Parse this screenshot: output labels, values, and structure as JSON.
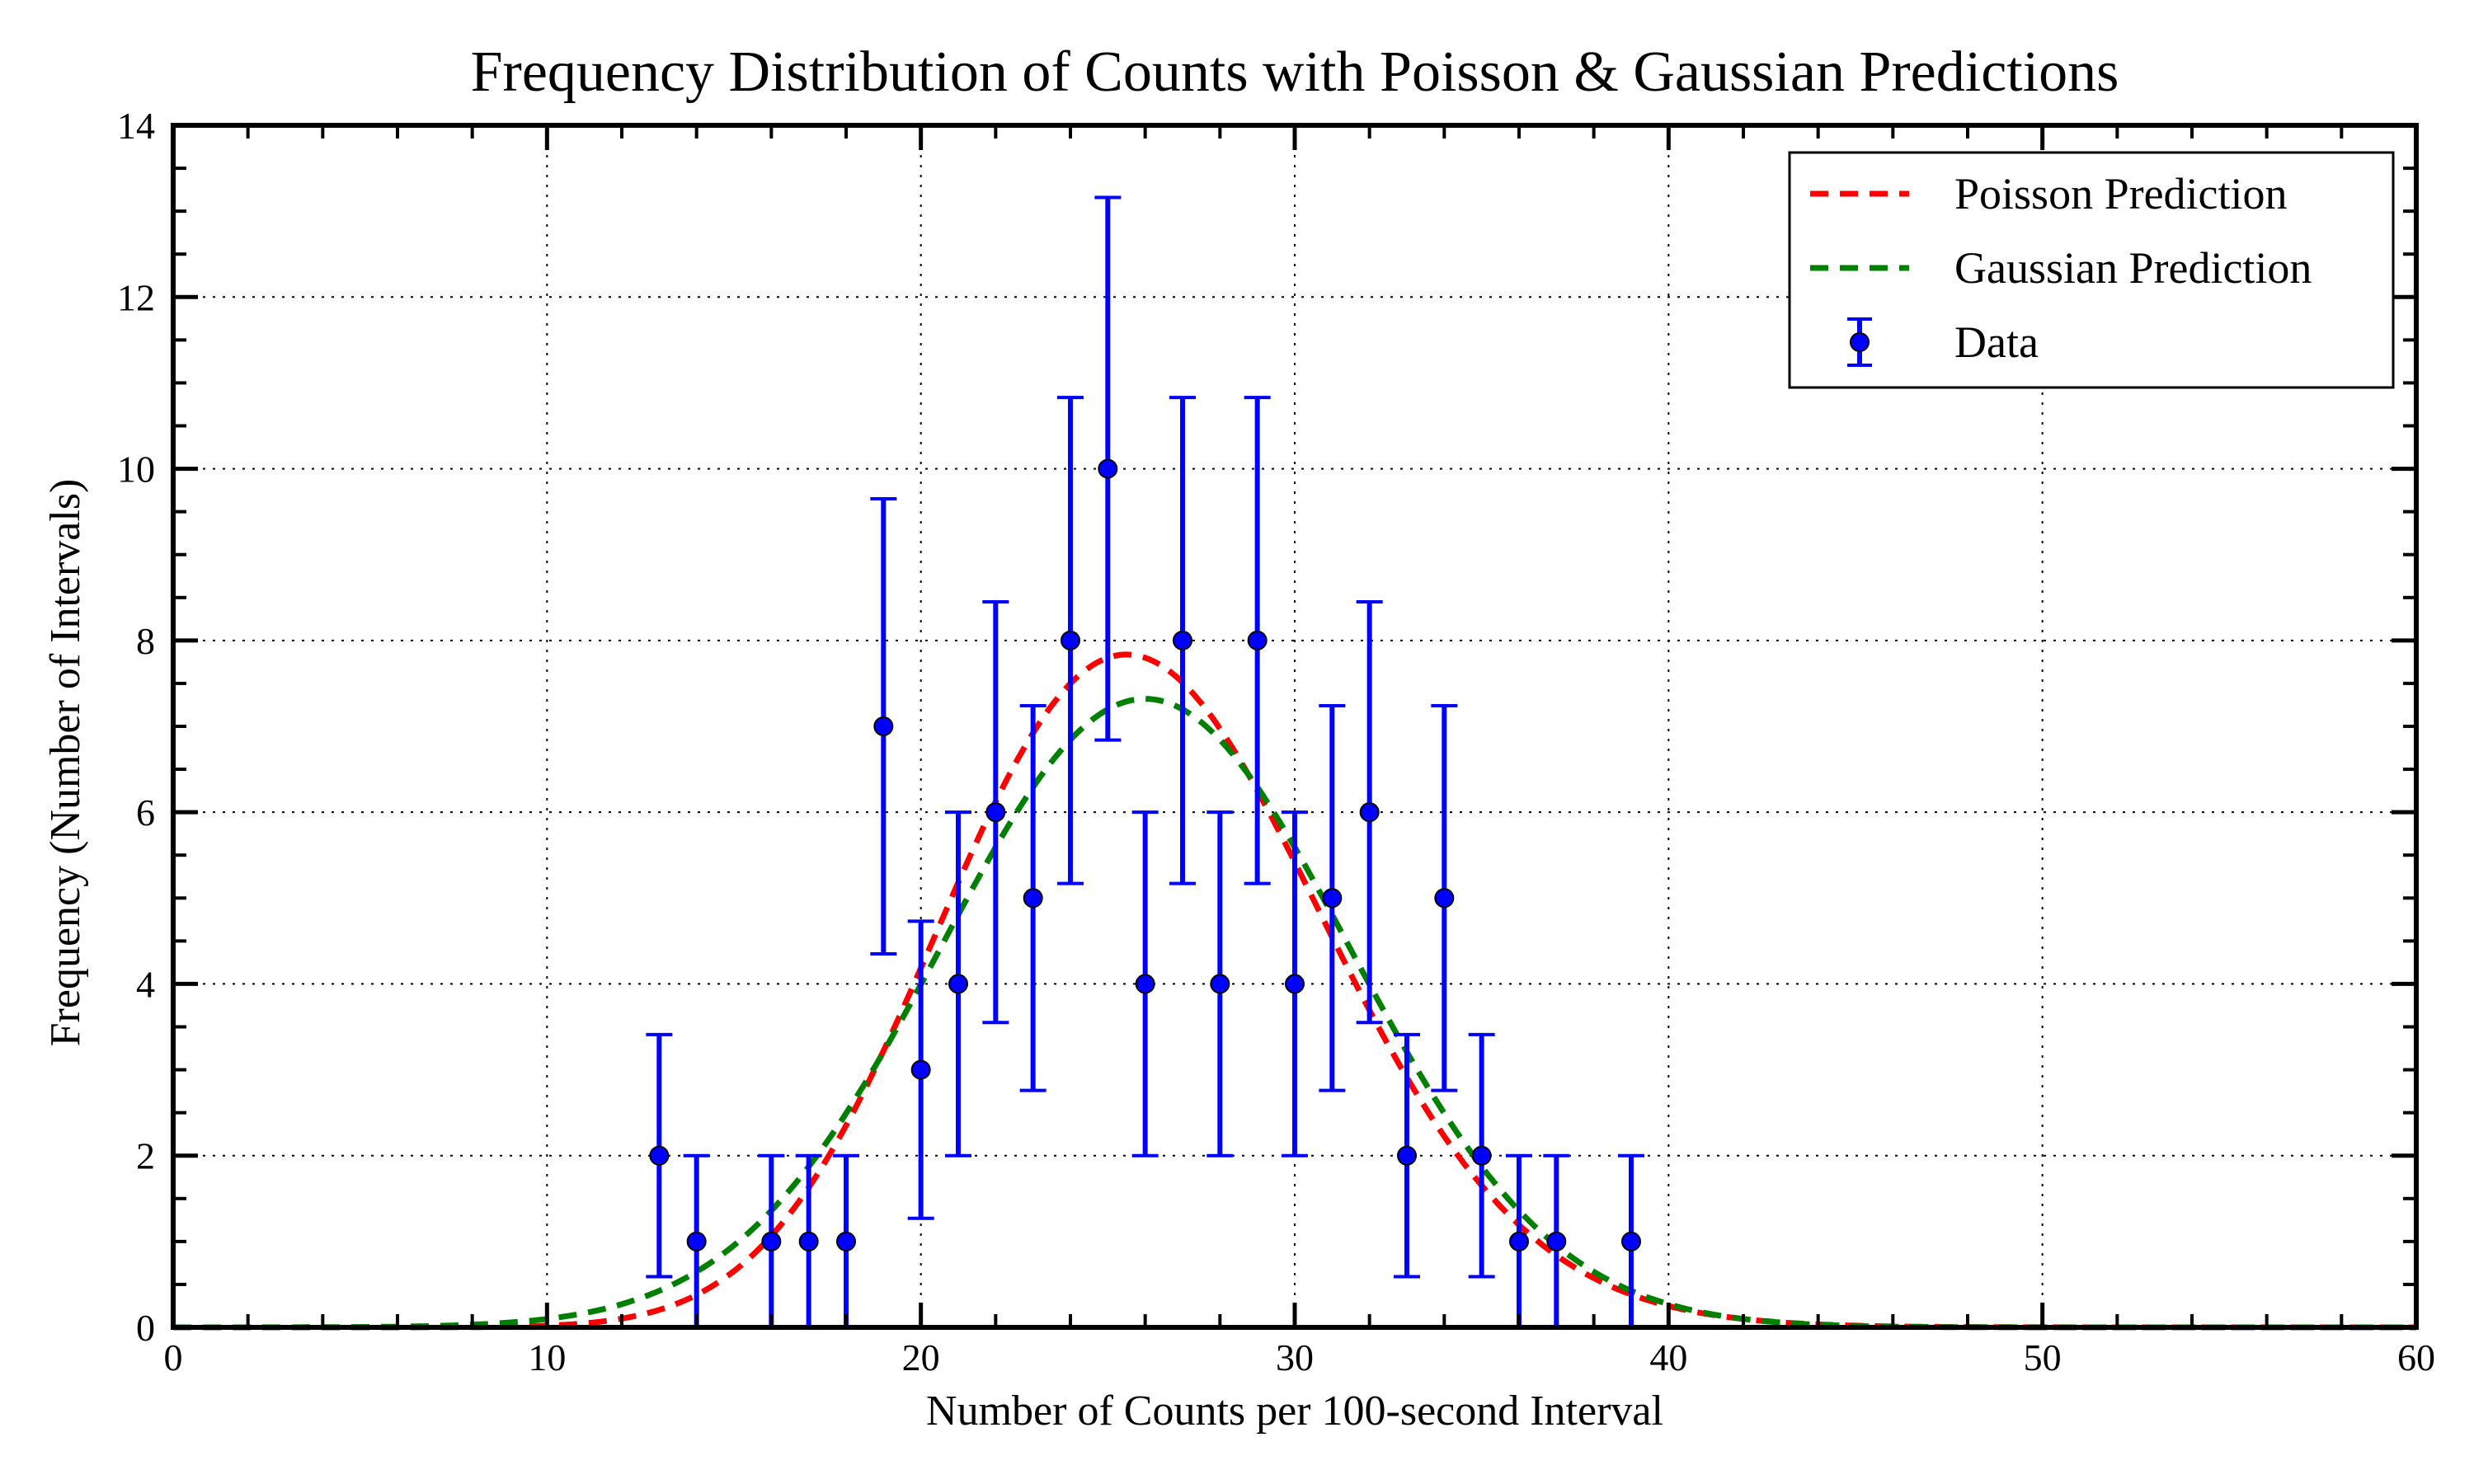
{
  "chart_data": {
    "type": "scatter",
    "title": "Frequency Distribution of Counts with Poisson & Gaussian Predictions",
    "xlabel": "Number of Counts per 100-second Interval",
    "ylabel": "Frequency (Number of Intervals)",
    "xlim": [
      0,
      60
    ],
    "ylim": [
      0,
      14
    ],
    "xticks": [
      0,
      10,
      20,
      30,
      40,
      50,
      60
    ],
    "yticks": [
      0,
      2,
      4,
      6,
      8,
      10,
      12,
      14
    ],
    "grid": true,
    "legend_position": "top-right",
    "series": [
      {
        "name": "Poisson Prediction",
        "kind": "curve",
        "distribution": "poisson",
        "color": "#ff0000",
        "dash": "dashed",
        "mean": 26,
        "total": 100
      },
      {
        "name": "Gaussian Prediction",
        "kind": "curve",
        "distribution": "gaussian",
        "color": "#008000",
        "dash": "dashed",
        "mean": 26,
        "sigma": 5.45,
        "total": 100
      },
      {
        "name": "Data",
        "kind": "errorbar",
        "color": "#0000ff",
        "x": [
          13,
          14,
          16,
          17,
          18,
          19,
          20,
          21,
          22,
          23,
          24,
          25,
          26,
          27,
          28,
          29,
          30,
          31,
          32,
          33,
          34,
          35,
          36,
          37,
          39
        ],
        "y": [
          2,
          1,
          1,
          1,
          1,
          7,
          3,
          4,
          6,
          5,
          8,
          10,
          4,
          8,
          4,
          8,
          4,
          5,
          6,
          2,
          5,
          2,
          1,
          1,
          1
        ],
        "yerr": [
          1.41,
          1,
          1,
          1,
          1,
          2.65,
          1.73,
          2,
          2.45,
          2.24,
          2.83,
          3.16,
          2,
          2.83,
          2,
          2.83,
          2,
          2.24,
          2.45,
          1.41,
          2.24,
          1.41,
          1,
          1,
          1
        ]
      }
    ]
  }
}
